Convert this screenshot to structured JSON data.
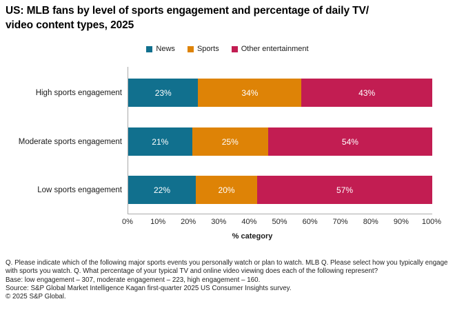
{
  "title": "US: MLB fans by level of sports engagement and percentage of daily TV/\nvideo content types, 2025",
  "chart_data": {
    "type": "bar",
    "orientation": "horizontal",
    "stacked": true,
    "title": "US: MLB fans by level of sports engagement and percentage of daily TV/video content types, 2025",
    "categories": [
      "High sports engagement",
      "Moderate sports engagement",
      "Low sports engagement"
    ],
    "series": [
      {
        "name": "News",
        "color": "#11708E",
        "values": [
          23,
          21,
          22
        ]
      },
      {
        "name": "Sports",
        "color": "#DE8306",
        "values": [
          34,
          25,
          20
        ]
      },
      {
        "name": "Other entertainment",
        "color": "#C21D52",
        "values": [
          43,
          54,
          57
        ]
      }
    ],
    "value_label_suffix": "%",
    "xlabel": "% category",
    "xlim": [
      0,
      100
    ],
    "x_ticks": [
      "0%",
      "10%",
      "20%",
      "30%",
      "40%",
      "50%",
      "60%",
      "70%",
      "80%",
      "90%",
      "100%"
    ],
    "legend_position": "top",
    "grid": false,
    "axis_color": "#a9a9a9"
  },
  "footnotes": [
    "Q. Please indicate which of the following major sports events you personally watch or plan to watch. MLB Q. Please select how you typically engage with sports you watch. Q. What percentage of your typical TV and online video viewing does each of the following represent?",
    "Base: low engagement – 307, moderate engagement – 223, high engagement – 160.",
    "Source: S&P Global Market Intelligence Kagan first-quarter 2025 US Consumer Insights survey.",
    "© 2025 S&P Global."
  ]
}
